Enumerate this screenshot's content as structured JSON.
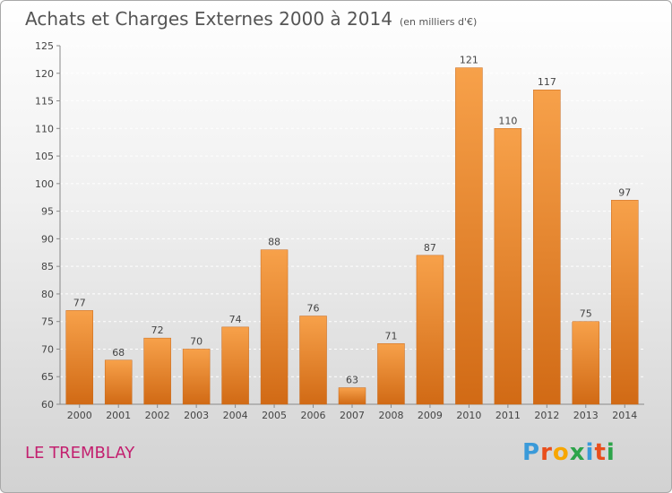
{
  "title": "Achats et Charges Externes 2000 à 2014",
  "subtitle": "(en milliers d'€)",
  "place": "LE TREMBLAY",
  "logo": {
    "letters": [
      "P",
      "r",
      "o",
      "x",
      "i",
      "t",
      "i"
    ],
    "colors": [
      "#3a9ad9",
      "#e94e1b",
      "#f7a600",
      "#2da44a",
      "#3a9ad9",
      "#e94e1b",
      "#2da44a"
    ]
  },
  "colors": {
    "bar_light": "#f7a14a",
    "bar_dark": "#d16a15",
    "place": "#c3206f"
  },
  "chart_data": {
    "type": "bar",
    "title": "Achats et Charges Externes 2000 à 2014",
    "xlabel": "",
    "ylabel": "",
    "ylim": [
      60,
      125
    ],
    "yticks": [
      60,
      65,
      70,
      75,
      80,
      85,
      90,
      95,
      100,
      105,
      110,
      115,
      120,
      125
    ],
    "grid": true,
    "categories": [
      "2000",
      "2001",
      "2002",
      "2003",
      "2004",
      "2005",
      "2006",
      "2007",
      "2008",
      "2009",
      "2010",
      "2011",
      "2012",
      "2013",
      "2014"
    ],
    "values": [
      77,
      68,
      72,
      70,
      74,
      88,
      76,
      63,
      71,
      87,
      121,
      110,
      117,
      75,
      97
    ]
  }
}
